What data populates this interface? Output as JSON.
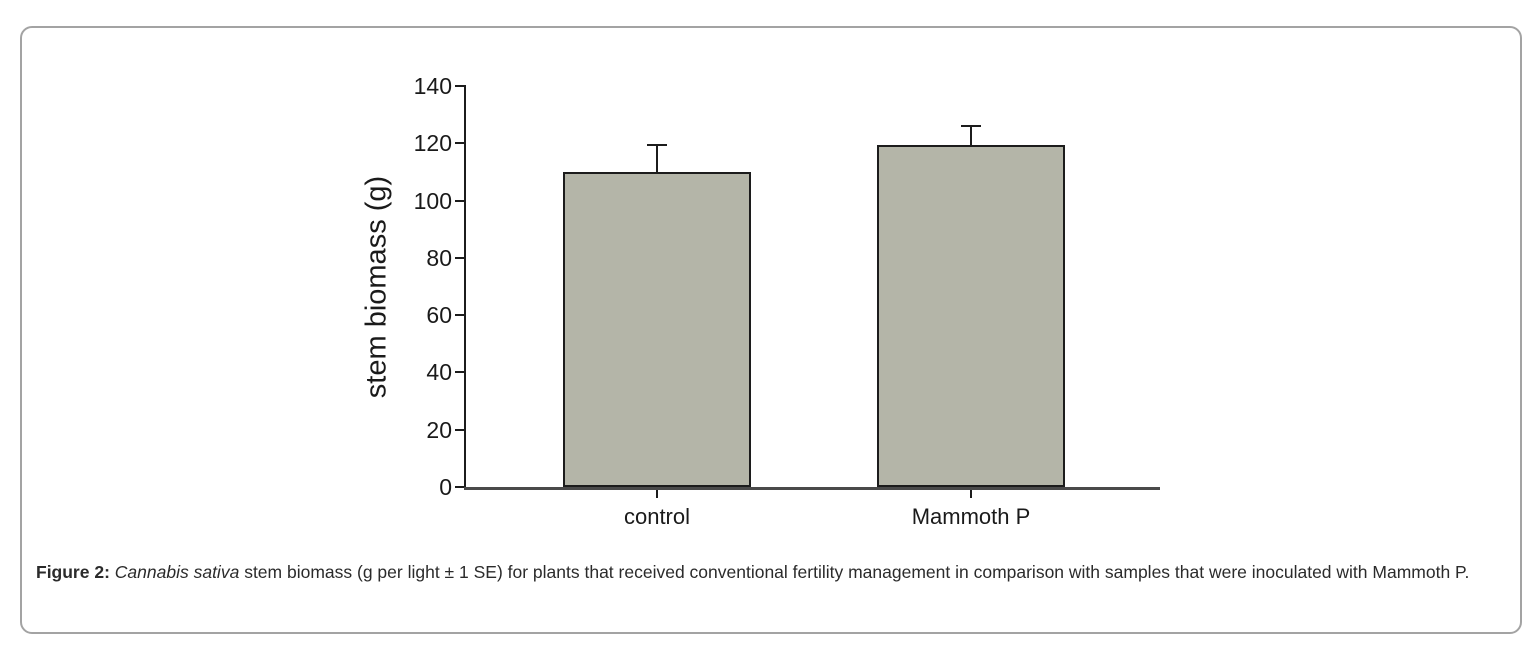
{
  "figure": {
    "caption": {
      "label": "Figure 2:",
      "species": "Cannabis sativa",
      "text": "stem biomass (g per light ± 1 SE) for plants that received conventional fertility management in comparison with samples that were inoculated with Mammoth P."
    }
  },
  "chart_data": {
    "type": "bar",
    "categories": [
      "control",
      "Mammoth P"
    ],
    "values": [
      110,
      119.5
    ],
    "errors": [
      9.5,
      6.5
    ],
    "error_note": "+1 SE error bars",
    "title": "",
    "xlabel": "",
    "ylabel": "stem biomass (g)",
    "ylim": [
      0,
      140
    ],
    "yticks": [
      0,
      20,
      40,
      60,
      80,
      100,
      120,
      140
    ],
    "grid": false,
    "legend": false,
    "bar_color": "#b4b5a8",
    "bar_border_color": "#1c1c1c",
    "axis_color": "#4a4a4a",
    "frame_border_color": "#a3a3a3"
  }
}
